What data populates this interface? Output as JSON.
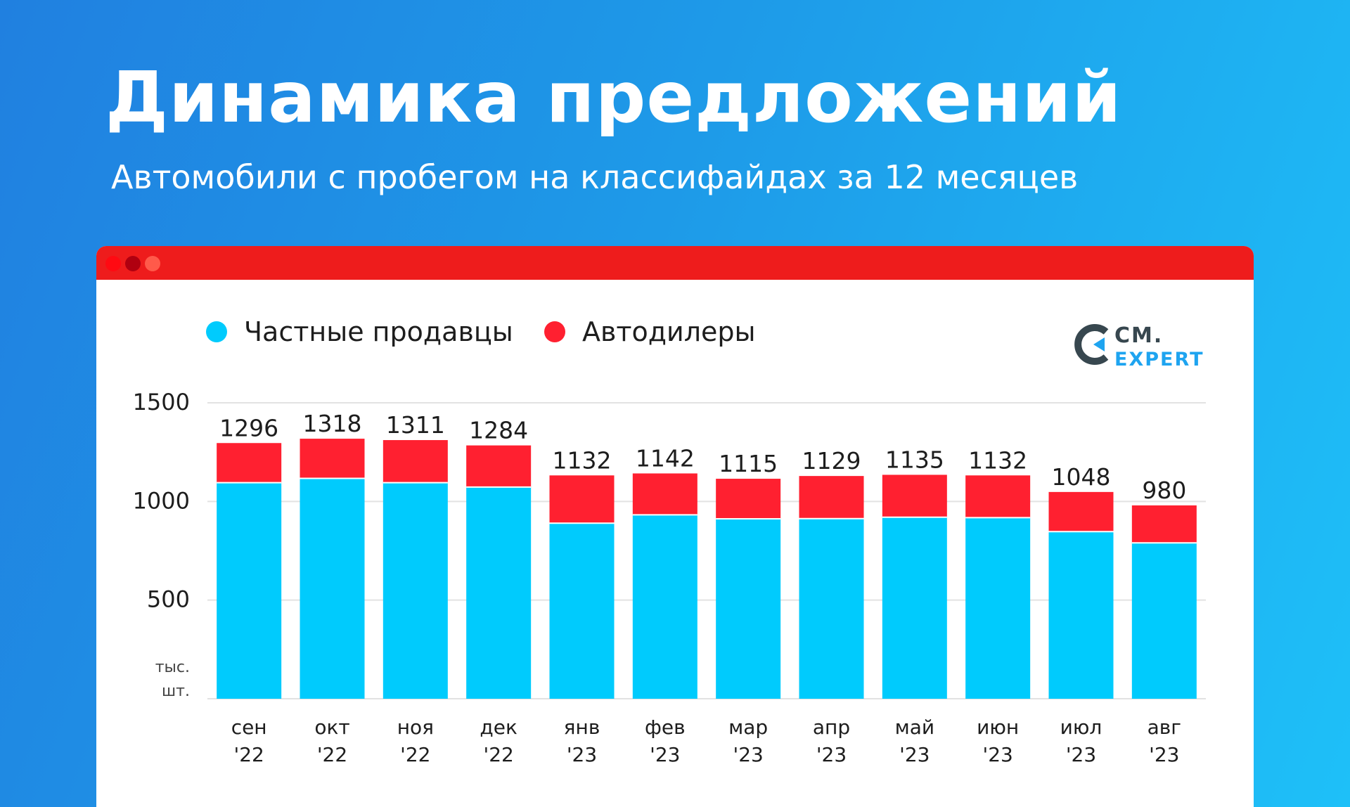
{
  "header": {
    "title": "Динамика предложений",
    "subtitle": "Автомобили с пробегом на классифайдах за 12 месяцев"
  },
  "legend": {
    "private": "Частные продавцы",
    "dealers": "Автодилеры"
  },
  "logo": {
    "line1": "CM.",
    "line2": "EXPERT"
  },
  "colors": {
    "private": "#00cbfd",
    "dealers": "#ff2030",
    "grid": "#e2e2e2"
  },
  "chart_data": {
    "type": "bar",
    "stacked": true,
    "title": "Динамика предложений",
    "ylabel_line1": "тыс.",
    "ylabel_line2": "шт.",
    "ylim": [
      0,
      1500
    ],
    "yticks": [
      500,
      1000,
      1500
    ],
    "categories": [
      {
        "month": "сен",
        "year": "'22"
      },
      {
        "month": "окт",
        "year": "'22"
      },
      {
        "month": "ноя",
        "year": "'22"
      },
      {
        "month": "дек",
        "year": "'22"
      },
      {
        "month": "янв",
        "year": "'23"
      },
      {
        "month": "фев",
        "year": "'23"
      },
      {
        "month": "мар",
        "year": "'23"
      },
      {
        "month": "апр",
        "year": "'23"
      },
      {
        "month": "май",
        "year": "'23"
      },
      {
        "month": "июн",
        "year": "'23"
      },
      {
        "month": "июл",
        "year": "'23"
      },
      {
        "month": "авг",
        "year": "'23"
      }
    ],
    "series": [
      {
        "name": "Частные продавцы",
        "values": [
          1095,
          1117,
          1095,
          1073,
          890,
          932,
          912,
          913,
          920,
          918,
          847,
          790
        ]
      },
      {
        "name": "Автодилеры",
        "values": [
          201,
          201,
          216,
          211,
          242,
          210,
          203,
          216,
          215,
          214,
          201,
          190
        ]
      }
    ],
    "totals": [
      1296,
      1318,
      1311,
      1284,
      1132,
      1142,
      1115,
      1129,
      1135,
      1132,
      1048,
      980
    ]
  }
}
